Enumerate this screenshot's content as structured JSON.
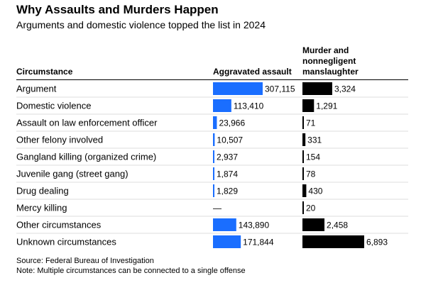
{
  "title": "Why Assaults and Murders Happen",
  "subtitle": "Arguments and domestic violence topped the list in 2024",
  "headers": {
    "circumstance": "Circumstance",
    "aggravated_assault": "Aggravated assault",
    "murder_line1": "Murder and",
    "murder_line2": "nonnegligent",
    "murder_line3": "manslaughter"
  },
  "colors": {
    "assault_bar": "#1a6eff",
    "murder_bar": "#000000",
    "row_divider": "#dddddd",
    "text": "#000000"
  },
  "chart_data": {
    "type": "table",
    "title": "Why Assaults and Murders Happen",
    "subtitle": "Arguments and domestic violence topped the list in 2024",
    "columns": [
      "Circumstance",
      "Aggravated assault",
      "Murder and nonnegligent manslaughter"
    ],
    "rows": [
      {
        "circumstance": "Argument",
        "assault": 307115,
        "assault_label": "307,115",
        "murder": 3324,
        "murder_label": "3,324"
      },
      {
        "circumstance": "Domestic violence",
        "assault": 113410,
        "assault_label": "113,410",
        "murder": 1291,
        "murder_label": "1,291"
      },
      {
        "circumstance": "Assault on law enforcement officer",
        "assault": 23966,
        "assault_label": "23,966",
        "murder": 71,
        "murder_label": "71"
      },
      {
        "circumstance": "Other felony involved",
        "assault": 10507,
        "assault_label": "10,507",
        "murder": 331,
        "murder_label": "331"
      },
      {
        "circumstance": "Gangland killing (organized crime)",
        "assault": 2937,
        "assault_label": "2,937",
        "murder": 154,
        "murder_label": "154"
      },
      {
        "circumstance": "Juvenile gang (street gang)",
        "assault": 1874,
        "assault_label": "1,874",
        "murder": 78,
        "murder_label": "78"
      },
      {
        "circumstance": "Drug dealing",
        "assault": 1829,
        "assault_label": "1,829",
        "murder": 430,
        "murder_label": "430"
      },
      {
        "circumstance": "Mercy killing",
        "assault": null,
        "assault_label": "—",
        "murder": 20,
        "murder_label": "20"
      },
      {
        "circumstance": "Other circumstances",
        "assault": 143890,
        "assault_label": "143,890",
        "murder": 2458,
        "murder_label": "2,458"
      },
      {
        "circumstance": "Unknown circumstances",
        "assault": 171844,
        "assault_label": "171,844",
        "murder": 6893,
        "murder_label": "6,893"
      }
    ]
  },
  "footer": {
    "source": "Source: Federal Bureau of Investigation",
    "note": "Note: Multiple circumstances can be connected to a single offense"
  }
}
